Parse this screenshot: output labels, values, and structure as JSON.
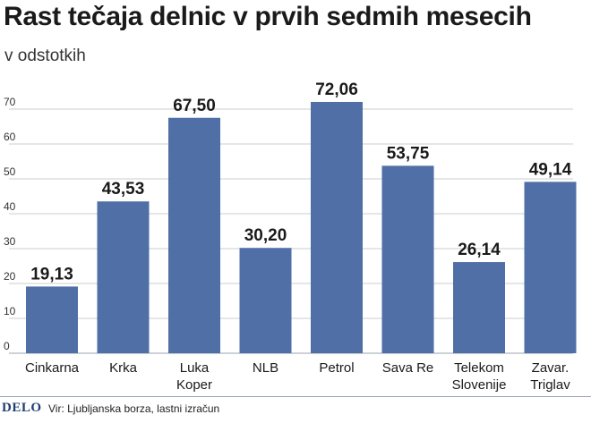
{
  "chart_data": {
    "type": "bar",
    "title": "Rast tečaja delnic v prvih sedmih mesecih",
    "subtitle": "v odstotkih",
    "categories": [
      [
        "Cinkarna"
      ],
      [
        "Krka"
      ],
      [
        "Luka",
        "Koper"
      ],
      [
        "NLB"
      ],
      [
        "Petrol"
      ],
      [
        "Sava Re"
      ],
      [
        "Telekom",
        "Slovenije"
      ],
      [
        "Zavar.",
        "Triglav"
      ]
    ],
    "values": [
      19.13,
      43.53,
      67.5,
      30.2,
      72.06,
      53.75,
      26.14,
      49.14
    ],
    "value_labels": [
      "19,13",
      "43,53",
      "67,50",
      "30,20",
      "72,06",
      "53,75",
      "26,14",
      "49,14"
    ],
    "yticks": [
      "0",
      "10",
      "20",
      "30",
      "40",
      "50",
      "60",
      "70"
    ],
    "ylim": [
      0,
      80
    ],
    "grid": true,
    "bar_color": "#4f6fa6"
  },
  "footer": {
    "brand": "DELO",
    "source": "Vir: Ljubljanska borza, lastni izračun"
  }
}
